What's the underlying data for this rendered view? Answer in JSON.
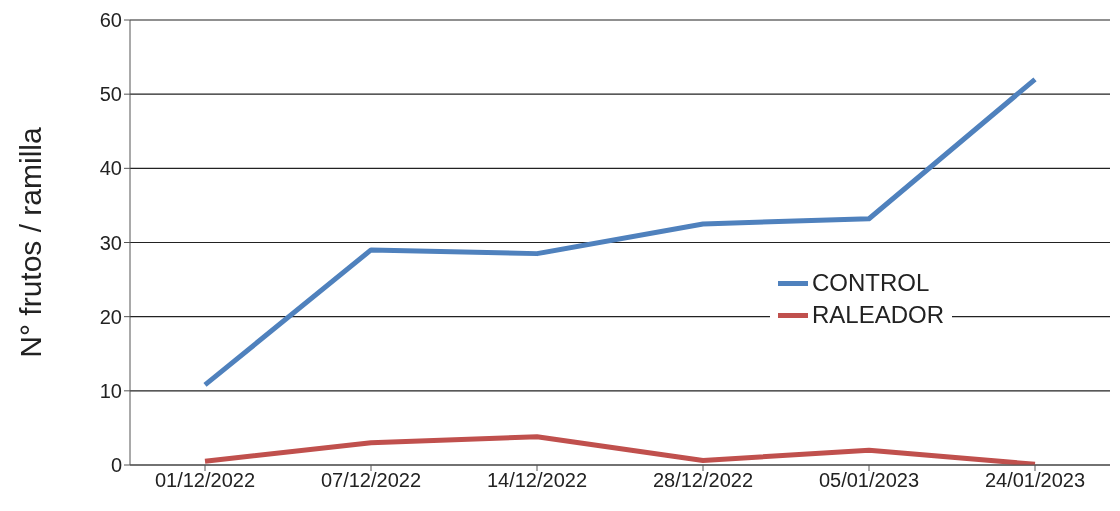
{
  "chart_data": {
    "type": "line",
    "ylabel": "N° frutos / ramilla",
    "categories": [
      "01/12/2022",
      "07/12/2022",
      "14/12/2022",
      "28/12/2022",
      "05/01/2023",
      "24/01/2023"
    ],
    "series": [
      {
        "name": "CONTROL",
        "color": "#4f81bd",
        "values": [
          10.8,
          29,
          28.5,
          32.5,
          33.2,
          52
        ]
      },
      {
        "name": "RALEADOR",
        "color": "#c0504d",
        "values": [
          0.5,
          3,
          3.8,
          0.6,
          2,
          0.1
        ]
      }
    ],
    "ylim": [
      0,
      60
    ],
    "yticks": [
      0,
      10,
      20,
      30,
      40,
      50,
      60
    ],
    "grid": "y",
    "legend": "right"
  }
}
